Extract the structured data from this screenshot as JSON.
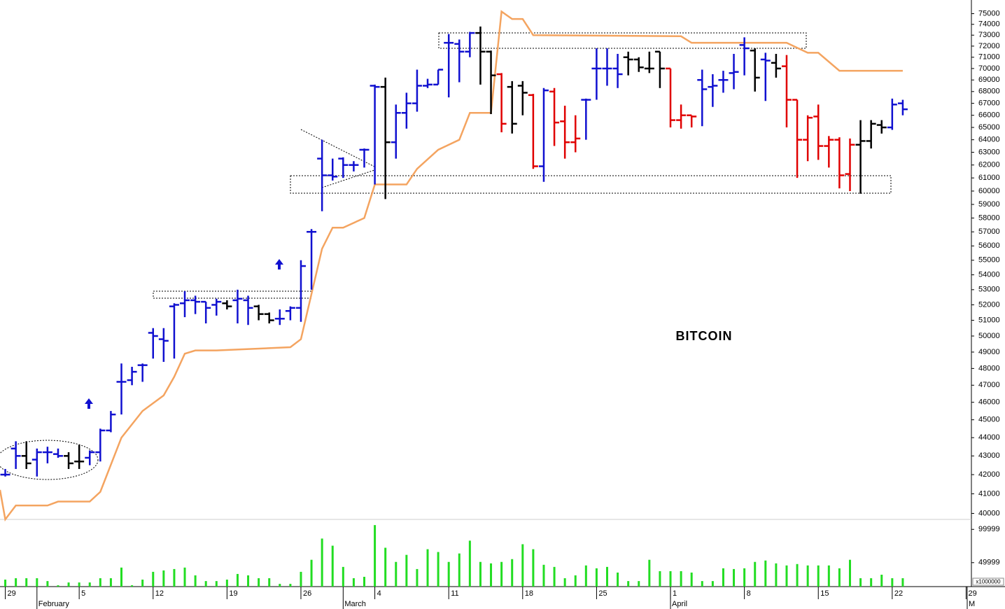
{
  "chart_data": {
    "type": "ohlc",
    "annotation": "BITCOIN",
    "log_scale": true,
    "ylim": [
      39700,
      76300
    ],
    "yticks": [
      40000,
      41000,
      42000,
      43000,
      44000,
      45000,
      46000,
      47000,
      48000,
      49000,
      50000,
      51000,
      52000,
      53000,
      54000,
      55000,
      56000,
      57000,
      58000,
      59000,
      60000,
      61000,
      62000,
      63000,
      64000,
      65000,
      66000,
      67000,
      68000,
      69000,
      70000,
      71000,
      72000,
      73000,
      74000,
      75000
    ],
    "xlim": [
      -0.5,
      91.5
    ],
    "xticks": [
      {
        "value": 0,
        "label": "29"
      },
      {
        "value": 7,
        "label": "5"
      },
      {
        "value": 14,
        "label": "12"
      },
      {
        "value": 21,
        "label": "19"
      },
      {
        "value": 28,
        "label": "26"
      },
      {
        "value": 35,
        "label": "4"
      },
      {
        "value": 42,
        "label": "11"
      },
      {
        "value": 49,
        "label": "18"
      },
      {
        "value": 56,
        "label": "25"
      },
      {
        "value": 63,
        "label": "1"
      },
      {
        "value": 70,
        "label": "8"
      },
      {
        "value": 77,
        "label": "15"
      },
      {
        "value": 84,
        "label": "22"
      },
      {
        "value": 91,
        "label": "29"
      }
    ],
    "month_ticks": [
      {
        "value": 3,
        "label": "February"
      },
      {
        "value": 32,
        "label": "March"
      },
      {
        "value": 63,
        "label": "April"
      },
      {
        "value": 93,
        "label": "M"
      }
    ],
    "bars": {
      "x": [
        0,
        1,
        2,
        3,
        4,
        5,
        6,
        7,
        8,
        9,
        10,
        11,
        12,
        13,
        14,
        15,
        16,
        17,
        18,
        19,
        20,
        21,
        22,
        23,
        24,
        25,
        26,
        27,
        28,
        29,
        30,
        31,
        32,
        33,
        34,
        35,
        36,
        37,
        38,
        39,
        40,
        41,
        42,
        43,
        44,
        45,
        46,
        47,
        48,
        49,
        50,
        51,
        52,
        53,
        54,
        55,
        56,
        57,
        58,
        59,
        60,
        61,
        62,
        63,
        64,
        65,
        66,
        67,
        68,
        69,
        70,
        71,
        72,
        73,
        74,
        75,
        76,
        77,
        78,
        79,
        80,
        81,
        82,
        83,
        84,
        85
      ],
      "open": [
        42000,
        43400,
        43000,
        42800,
        43200,
        43100,
        43000,
        42700,
        42900,
        43200,
        44400,
        47200,
        47300,
        48200,
        50200,
        49800,
        51900,
        52100,
        52300,
        52200,
        52000,
        52100,
        52300,
        52300,
        51900,
        51400,
        51100,
        51600,
        51800,
        57000,
        62500,
        61200,
        62500,
        62000,
        63200,
        68500,
        68400,
        63800,
        66200,
        67000,
        68500,
        68600,
        72300,
        72200,
        71500,
        73200,
        71500,
        69500,
        68400,
        68500,
        67700,
        61900,
        68000,
        65500,
        63800,
        67300,
        70000,
        70000,
        70000,
        71000,
        70800,
        70000,
        71500,
        70000,
        65600,
        66000,
        69000,
        68400,
        69000,
        69600,
        72100,
        71600,
        70800,
        70500,
        70200,
        67300,
        64000,
        65900,
        63500,
        64000,
        61300,
        63600,
        63900,
        65200,
        65000,
        67000
      ],
      "high": [
        42300,
        43800,
        43800,
        43400,
        43500,
        43400,
        43200,
        43600,
        43300,
        44500,
        45500,
        48300,
        48100,
        48300,
        50500,
        50500,
        52100,
        52900,
        52600,
        52200,
        52400,
        52300,
        53000,
        52600,
        52000,
        51500,
        51700,
        51900,
        55000,
        57200,
        64000,
        62500,
        62600,
        62300,
        63300,
        68600,
        69200,
        66900,
        67900,
        69900,
        69100,
        69900,
        73100,
        72600,
        73300,
        73800,
        71600,
        69600,
        68900,
        68900,
        67800,
        68300,
        68300,
        66800,
        66000,
        67400,
        71800,
        71800,
        71300,
        71500,
        71000,
        71500,
        71500,
        70000,
        66900,
        66000,
        69900,
        69500,
        69800,
        71300,
        72800,
        71800,
        71400,
        71300,
        71200,
        67300,
        66000,
        66900,
        64300,
        64200,
        64100,
        65600,
        65600,
        65600,
        67400,
        67300
      ],
      "low": [
        41900,
        42300,
        42300,
        41900,
        42600,
        42900,
        42300,
        42300,
        42500,
        42700,
        44300,
        45300,
        47000,
        47200,
        48600,
        48400,
        48600,
        51200,
        51400,
        50800,
        51300,
        51700,
        50800,
        50700,
        51000,
        50800,
        50700,
        51000,
        50900,
        53000,
        58500,
        60800,
        61000,
        61500,
        61800,
        60500,
        59400,
        62500,
        64900,
        66300,
        68300,
        68600,
        67500,
        68800,
        71000,
        68600,
        66100,
        64600,
        64500,
        66000,
        61700,
        60700,
        63500,
        62500,
        63000,
        64000,
        67300,
        68500,
        68300,
        69400,
        69700,
        69600,
        68300,
        65000,
        64900,
        65000,
        65100,
        66700,
        67900,
        68200,
        69400,
        68000,
        67200,
        69200,
        65000,
        61000,
        62300,
        62400,
        61800,
        60200,
        60000,
        59800,
        63300,
        64500,
        64800,
        66000
      ],
      "close": [
        42000,
        43000,
        42600,
        43200,
        43200,
        43000,
        42600,
        42700,
        43200,
        44400,
        45300,
        47200,
        47800,
        48200,
        50000,
        49700,
        52000,
        52300,
        52200,
        51800,
        52200,
        51900,
        52400,
        51800,
        51400,
        51000,
        51100,
        51800,
        54600,
        57000,
        61200,
        61100,
        62000,
        62000,
        63200,
        68400,
        63800,
        66200,
        67000,
        68500,
        68600,
        69900,
        72300,
        71500,
        73200,
        71500,
        69400,
        65300,
        65300,
        67900,
        61900,
        68100,
        65400,
        63800,
        64100,
        67300,
        70000,
        70000,
        69500,
        70800,
        70100,
        70000,
        70000,
        65600,
        66000,
        65900,
        68200,
        68500,
        69000,
        69700,
        71800,
        69200,
        70700,
        70000,
        67300,
        64000,
        65800,
        63500,
        64000,
        61200,
        63600,
        63900,
        65300,
        65000,
        66900,
        66500
      ],
      "colors": [
        "#1010d0",
        "#1010d0",
        "#000000",
        "#1010d0",
        "#1010d0",
        "#1010d0",
        "#000000",
        "#000000",
        "#1010d0",
        "#1010d0",
        "#1010d0",
        "#1010d0",
        "#1010d0",
        "#1010d0",
        "#1010d0",
        "#1010d0",
        "#1010d0",
        "#1010d0",
        "#1010d0",
        "#1010d0",
        "#1010d0",
        "#000000",
        "#1010d0",
        "#1010d0",
        "#000000",
        "#000000",
        "#1010d0",
        "#1010d0",
        "#1010d0",
        "#1010d0",
        "#1010d0",
        "#1010d0",
        "#1010d0",
        "#1010d0",
        "#1010d0",
        "#1010d0",
        "#000000",
        "#1010d0",
        "#1010d0",
        "#1010d0",
        "#1010d0",
        "#1010d0",
        "#1010d0",
        "#1010d0",
        "#1010d0",
        "#000000",
        "#000000",
        "#e00000",
        "#000000",
        "#000000",
        "#e00000",
        "#1010d0",
        "#e00000",
        "#e00000",
        "#e00000",
        "#1010d0",
        "#1010d0",
        "#1010d0",
        "#1010d0",
        "#000000",
        "#000000",
        "#000000",
        "#000000",
        "#e00000",
        "#e00000",
        "#e00000",
        "#1010d0",
        "#1010d0",
        "#1010d0",
        "#1010d0",
        "#1010d0",
        "#000000",
        "#1010d0",
        "#000000",
        "#e00000",
        "#e00000",
        "#e00000",
        "#e00000",
        "#e00000",
        "#e00000",
        "#e00000",
        "#000000",
        "#000000",
        "#000000",
        "#1010d0",
        "#1010d0"
      ]
    },
    "trail": {
      "color": "#f4a460",
      "x": [
        -0.5,
        0,
        1,
        4,
        5,
        8,
        9,
        11,
        13,
        15,
        16,
        17,
        18,
        20,
        27,
        28,
        30,
        31,
        32,
        34,
        35,
        38,
        39,
        41,
        43,
        44,
        46,
        47,
        48,
        49,
        50,
        64,
        65,
        74,
        76,
        77,
        79,
        85
      ],
      "values": [
        41200,
        39700,
        40400,
        40400,
        40600,
        40600,
        41100,
        44000,
        45500,
        46400,
        47500,
        48900,
        49100,
        49100,
        49300,
        49800,
        55800,
        57300,
        57300,
        58000,
        60500,
        60500,
        61700,
        63200,
        64000,
        66200,
        66200,
        75200,
        74500,
        74500,
        73000,
        72900,
        72300,
        72300,
        71400,
        71400,
        69800,
        69800
      ]
    },
    "volume": {
      "color": "#22dd22",
      "unit": "x1000000",
      "ylim": [
        14000,
        115000
      ],
      "yticks": [
        49999,
        99999
      ],
      "values": [
        24500,
        26600,
        26600,
        26600,
        22300,
        16000,
        20200,
        20200,
        20200,
        26600,
        26600,
        42600,
        16000,
        24500,
        36200,
        38300,
        40400,
        42600,
        30900,
        22300,
        22300,
        24500,
        33000,
        30900,
        26600,
        26600,
        18100,
        18100,
        36200,
        54300,
        86200,
        75500,
        43600,
        26600,
        28700,
        106400,
        72400,
        51100,
        61700,
        40400,
        70200,
        66000,
        51100,
        63800,
        83000,
        51100,
        48900,
        51100,
        55300,
        77700,
        70200,
        46800,
        43600,
        26600,
        30900,
        45800,
        41500,
        43600,
        35100,
        22300,
        22300,
        54300,
        37200,
        37200,
        37200,
        35100,
        22300,
        22300,
        41500,
        40400,
        41500,
        51100,
        53200,
        48900,
        45800,
        47900,
        45800,
        45800,
        45800,
        41500,
        54300,
        26600,
        26600,
        31900,
        26600,
        26600
      ]
    }
  }
}
